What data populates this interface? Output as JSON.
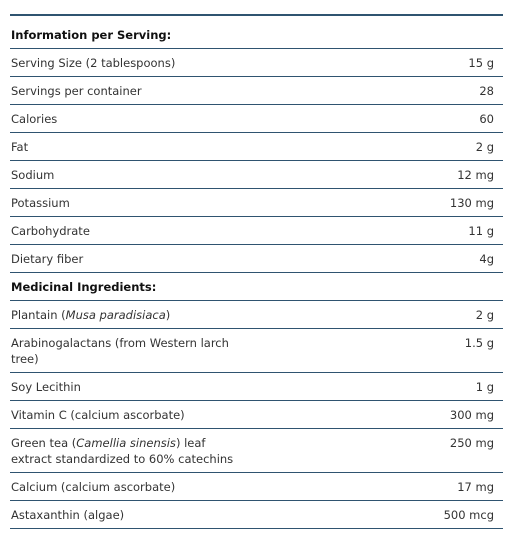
{
  "sections": [
    {
      "title": "Information per Serving:",
      "rows": [
        [
          "Serving Size (2 tablespoons)",
          "15 g"
        ],
        [
          "Servings per container",
          "28"
        ],
        [
          "Calories",
          "60"
        ],
        [
          "Fat",
          "2 g"
        ],
        [
          "Sodium",
          "12 mg"
        ],
        [
          "Potassium",
          "130 mg"
        ],
        [
          "Carbohydrate",
          "11 g"
        ],
        [
          "Dietary fiber",
          "4g"
        ]
      ]
    },
    {
      "title": "Medicinal Ingredients:",
      "rows": [
        [
          [
            "Plantain (",
            "Musa paradisiaca",
            ")"
          ],
          "2 g"
        ],
        [
          "Arabinogalactans (from Western larch tree)",
          "1.5 g"
        ],
        [
          "Soy Lecithin",
          "1 g"
        ],
        [
          "Vitamin C (calcium ascorbate)",
          "300 mg"
        ],
        [
          [
            "Green tea (",
            "Camellia sinensis",
            ") leaf extract standardized to 60% catechins"
          ],
          "250 mg"
        ],
        [
          "Calcium (calcium ascorbate)",
          "17 mg"
        ],
        [
          "Astaxanthin (algae)",
          "500 mcg"
        ]
      ]
    }
  ]
}
